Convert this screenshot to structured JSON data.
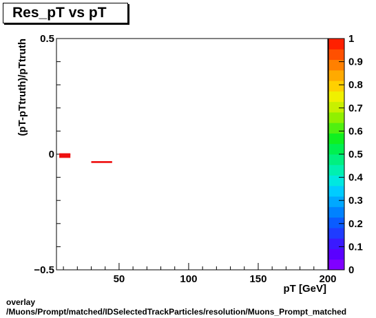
{
  "title": "Res_pT vs pT",
  "caption": {
    "line1": "overlay",
    "line2": "/Muons/Prompt/matched/IDSelectedTrackParticles/resolution/Muons_Prompt_matched"
  },
  "chart_data": {
    "type": "heatmap",
    "title": "Res_pT vs pT",
    "xlabel": "pT [GeV]",
    "ylabel": "(pT-pTtruth)/pTtruth",
    "xlim": [
      5,
      200
    ],
    "ylim": [
      -0.5,
      0.5
    ],
    "x_ticks": [
      50,
      100,
      150,
      200
    ],
    "y_ticks": [
      -0.5,
      0,
      0.5
    ],
    "y_tick_labels": [
      "−0.5",
      "0",
      "0.5"
    ],
    "grid": false,
    "colorbar": {
      "range": [
        0,
        1
      ],
      "ticks": [
        0,
        0.1,
        0.2,
        0.3,
        0.4,
        0.5,
        0.6,
        0.7,
        0.8,
        0.9,
        1
      ],
      "tick_labels": [
        "0",
        "0.1",
        "0.2",
        "0.3",
        "0.4",
        "0.5",
        "0.6",
        "0.7",
        "0.8",
        "0.9",
        "1"
      ],
      "colors": [
        "#8000ff",
        "#5a00ff",
        "#3a1aff",
        "#1f3cff",
        "#0a5cff",
        "#0082ff",
        "#00a8ff",
        "#00ccff",
        "#00e8e0",
        "#00f0b0",
        "#00f080",
        "#00f050",
        "#10f020",
        "#50f010",
        "#90f000",
        "#c8f000",
        "#f0f000",
        "#ffd000",
        "#ffaa00",
        "#ff8000",
        "#ff5000",
        "#ff2000"
      ]
    },
    "cells": [
      {
        "x0": 7,
        "x1": 15,
        "y0": -0.016,
        "y1": 0.0,
        "value": 1.0
      },
      {
        "x0": 7,
        "x1": 15,
        "y0": -0.004,
        "y1": 0.004,
        "value": 0.95
      },
      {
        "x0": 30,
        "x1": 45,
        "y0": -0.038,
        "y1": -0.03,
        "value": 1.0
      }
    ],
    "color": "#ee1111"
  }
}
